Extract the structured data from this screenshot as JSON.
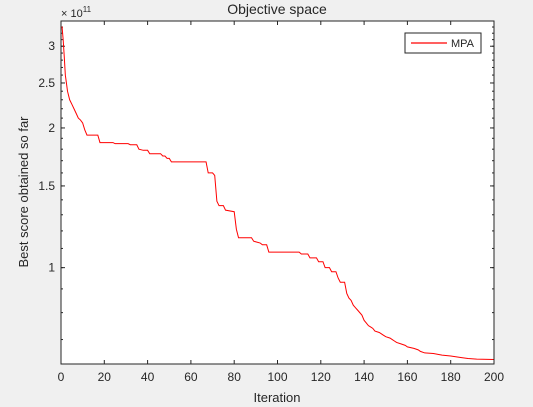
{
  "chart_data": {
    "type": "line",
    "title": "Objective space",
    "xlabel": "Iteration",
    "ylabel": "Best score obtained so far",
    "y_scale": "log",
    "y_exponent_label": "× 10",
    "y_exponent_power": "11",
    "xlim": [
      0,
      200
    ],
    "ylim": [
      0.62,
      3.4
    ],
    "xticks": [
      0,
      20,
      40,
      60,
      80,
      100,
      120,
      140,
      160,
      180,
      200
    ],
    "xtick_labels": [
      "0",
      "20",
      "40",
      "60",
      "80",
      "100",
      "120",
      "140",
      "160",
      "180",
      "200"
    ],
    "yticks": [
      1,
      1.5,
      2,
      2.5,
      3
    ],
    "ytick_labels": [
      "1",
      "1.5",
      "2",
      "2.5",
      "3"
    ],
    "grid": false,
    "legend_position": "top-right",
    "series": [
      {
        "name": "MPA",
        "color": "#ff0000",
        "points": [
          [
            0,
            3.3
          ],
          [
            0.5,
            3.3
          ],
          [
            1,
            3.1
          ],
          [
            1.5,
            2.85
          ],
          [
            2,
            2.6
          ],
          [
            2.5,
            2.5
          ],
          [
            3,
            2.4
          ],
          [
            4,
            2.3
          ],
          [
            5,
            2.25
          ],
          [
            6,
            2.2
          ],
          [
            7,
            2.15
          ],
          [
            8,
            2.1
          ],
          [
            9,
            2.08
          ],
          [
            10,
            2.05
          ],
          [
            11,
            1.98
          ],
          [
            12,
            1.93
          ],
          [
            17,
            1.93
          ],
          [
            18,
            1.86
          ],
          [
            24,
            1.86
          ],
          [
            25,
            1.85
          ],
          [
            31,
            1.85
          ],
          [
            32,
            1.84
          ],
          [
            35,
            1.84
          ],
          [
            36,
            1.8
          ],
          [
            38,
            1.79
          ],
          [
            40,
            1.79
          ],
          [
            41,
            1.76
          ],
          [
            46,
            1.76
          ],
          [
            47,
            1.74
          ],
          [
            48,
            1.74
          ],
          [
            49,
            1.72
          ],
          [
            50,
            1.72
          ],
          [
            51,
            1.69
          ],
          [
            67,
            1.69
          ],
          [
            68,
            1.6
          ],
          [
            70,
            1.6
          ],
          [
            71,
            1.58
          ],
          [
            72,
            1.39
          ],
          [
            73,
            1.36
          ],
          [
            75,
            1.36
          ],
          [
            76,
            1.33
          ],
          [
            80,
            1.32
          ],
          [
            81,
            1.21
          ],
          [
            82,
            1.16
          ],
          [
            88,
            1.16
          ],
          [
            89,
            1.14
          ],
          [
            92,
            1.13
          ],
          [
            93,
            1.12
          ],
          [
            95,
            1.12
          ],
          [
            96,
            1.08
          ],
          [
            110,
            1.08
          ],
          [
            111,
            1.07
          ],
          [
            114,
            1.07
          ],
          [
            115,
            1.05
          ],
          [
            118,
            1.05
          ],
          [
            119,
            1.03
          ],
          [
            121,
            1.03
          ],
          [
            122,
            1.0
          ],
          [
            124,
            1.0
          ],
          [
            125,
            0.98
          ],
          [
            127,
            0.98
          ],
          [
            128,
            0.95
          ],
          [
            129,
            0.93
          ],
          [
            131,
            0.93
          ],
          [
            132,
            0.88
          ],
          [
            133,
            0.86
          ],
          [
            134,
            0.85
          ],
          [
            135,
            0.83
          ],
          [
            136,
            0.82
          ],
          [
            137,
            0.81
          ],
          [
            138,
            0.8
          ],
          [
            139,
            0.79
          ],
          [
            140,
            0.77
          ],
          [
            141,
            0.76
          ],
          [
            142,
            0.75
          ],
          [
            143,
            0.745
          ],
          [
            144,
            0.74
          ],
          [
            145,
            0.73
          ],
          [
            147,
            0.725
          ],
          [
            149,
            0.715
          ],
          [
            150,
            0.71
          ],
          [
            152,
            0.705
          ],
          [
            153,
            0.7
          ],
          [
            154,
            0.695
          ],
          [
            155,
            0.69
          ],
          [
            157,
            0.685
          ],
          [
            159,
            0.68
          ],
          [
            160,
            0.675
          ],
          [
            163,
            0.67
          ],
          [
            165,
            0.665
          ],
          [
            166,
            0.66
          ],
          [
            168,
            0.655
          ],
          [
            172,
            0.653
          ],
          [
            176,
            0.648
          ],
          [
            180,
            0.645
          ],
          [
            185,
            0.64
          ],
          [
            188,
            0.637
          ],
          [
            192,
            0.635
          ],
          [
            200,
            0.634
          ]
        ]
      }
    ]
  }
}
